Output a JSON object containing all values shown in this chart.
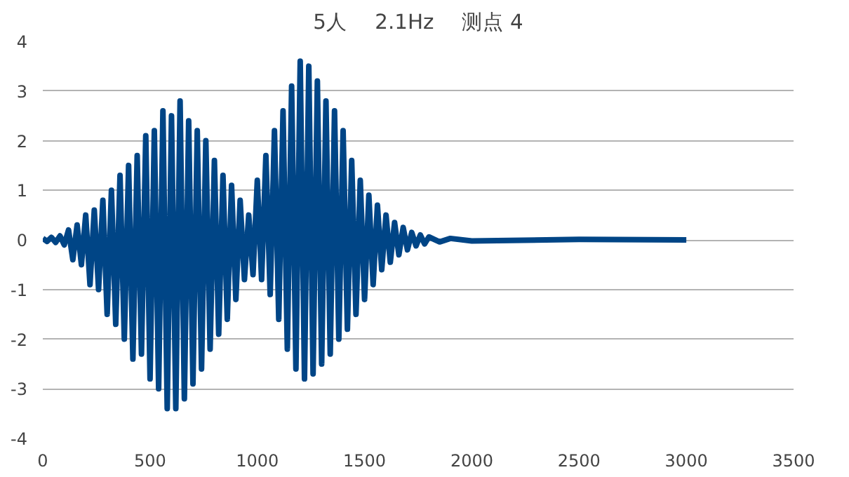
{
  "chart_data": {
    "type": "line",
    "title": "5人　 2.1Hz　 测点 4",
    "x": [
      0,
      20,
      40,
      60,
      80,
      100,
      120,
      140,
      160,
      180,
      200,
      220,
      240,
      260,
      280,
      300,
      320,
      340,
      360,
      380,
      400,
      420,
      440,
      460,
      480,
      500,
      520,
      540,
      560,
      580,
      600,
      620,
      640,
      660,
      680,
      700,
      720,
      740,
      760,
      780,
      800,
      820,
      840,
      860,
      880,
      900,
      920,
      940,
      960,
      980,
      1000,
      1020,
      1040,
      1060,
      1080,
      1100,
      1120,
      1140,
      1160,
      1180,
      1200,
      1220,
      1240,
      1260,
      1280,
      1300,
      1320,
      1340,
      1360,
      1380,
      1400,
      1420,
      1440,
      1460,
      1480,
      1500,
      1520,
      1540,
      1560,
      1580,
      1600,
      1620,
      1640,
      1660,
      1680,
      1700,
      1720,
      1740,
      1760,
      1780,
      1800,
      1850,
      1900,
      2000,
      2500,
      3000
    ],
    "series": [
      {
        "color": "#004586",
        "values": [
          0.03,
          -0.03,
          0.05,
          -0.05,
          0.08,
          -0.1,
          0.2,
          -0.4,
          0.3,
          -0.5,
          0.5,
          -0.9,
          0.6,
          -1.0,
          0.8,
          -1.5,
          1.0,
          -1.7,
          1.3,
          -2.0,
          1.5,
          -2.4,
          1.7,
          -2.3,
          2.1,
          -2.8,
          2.2,
          -3.0,
          2.6,
          -3.4,
          2.5,
          -3.4,
          2.8,
          -3.2,
          2.4,
          -2.9,
          2.2,
          -2.6,
          2.0,
          -2.2,
          1.6,
          -1.9,
          1.3,
          -1.6,
          1.1,
          -1.2,
          0.8,
          -0.8,
          0.5,
          -0.7,
          1.2,
          -0.8,
          1.7,
          -1.1,
          2.2,
          -1.6,
          2.6,
          -2.2,
          3.1,
          -2.6,
          3.6,
          -2.8,
          3.5,
          -2.7,
          3.2,
          -2.5,
          2.8,
          -2.3,
          2.6,
          -2.0,
          2.2,
          -1.8,
          1.6,
          -1.5,
          1.2,
          -1.2,
          0.9,
          -0.9,
          0.7,
          -0.6,
          0.5,
          -0.45,
          0.35,
          -0.3,
          0.25,
          -0.2,
          0.15,
          -0.12,
          0.1,
          -0.08,
          0.06,
          -0.04,
          0.03,
          -0.02,
          0.01,
          0.0
        ]
      }
    ],
    "xlim": [
      0,
      3500
    ],
    "xticks": [
      0,
      500,
      1000,
      1500,
      2000,
      2500,
      3000,
      3500
    ],
    "ylim": [
      -4,
      4
    ],
    "yticks": [
      -4,
      -3,
      -2,
      -1,
      0,
      1,
      2,
      3,
      4
    ],
    "grid": "y",
    "marker": "none",
    "line_style": "solid"
  }
}
